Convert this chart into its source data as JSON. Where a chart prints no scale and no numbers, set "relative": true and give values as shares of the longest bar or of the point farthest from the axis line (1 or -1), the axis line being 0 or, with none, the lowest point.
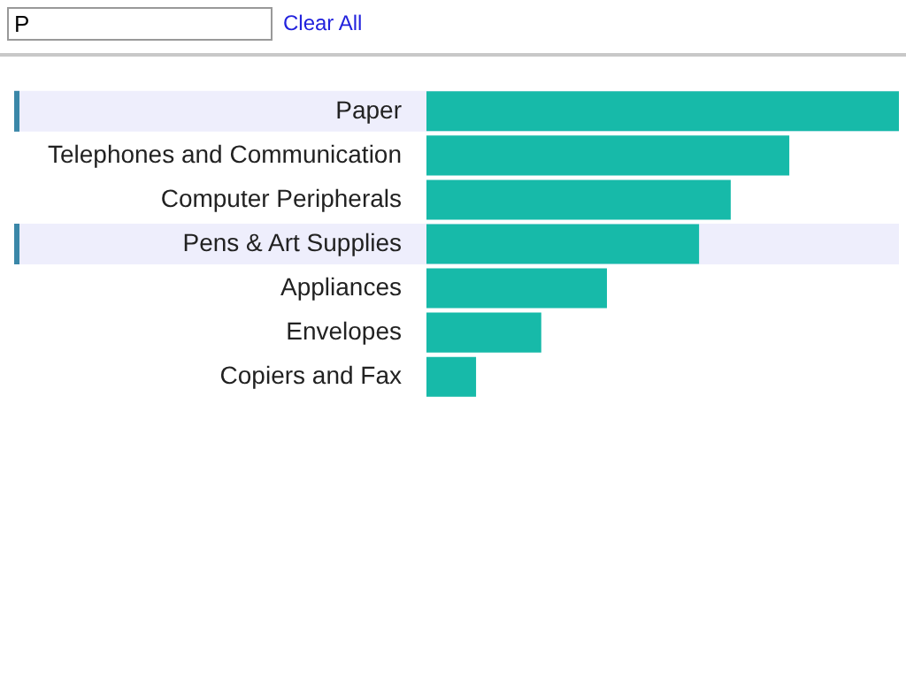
{
  "chart_data": {
    "type": "bar",
    "orientation": "horizontal",
    "relative": true,
    "categories": [
      "Paper",
      "Telephones and Communication",
      "Computer Peripherals",
      "Pens & Art Supplies",
      "Appliances",
      "Envelopes",
      "Copiers and Fax"
    ],
    "values": [
      1,
      0.768,
      0.644,
      0.577,
      0.382,
      0.243,
      0.105
    ],
    "color": "#17baa9",
    "legend": false,
    "bands": [
      {
        "axis": "y",
        "from": "Paper",
        "to": "Paper",
        "color": "#eeeefc"
      },
      {
        "axis": "y",
        "from": "Pens & Art Supplies",
        "to": "Pens & Art Supplies",
        "color": "#eeeefc"
      }
    ],
    "annotations": [
      "P",
      "Clear All"
    ]
  }
}
